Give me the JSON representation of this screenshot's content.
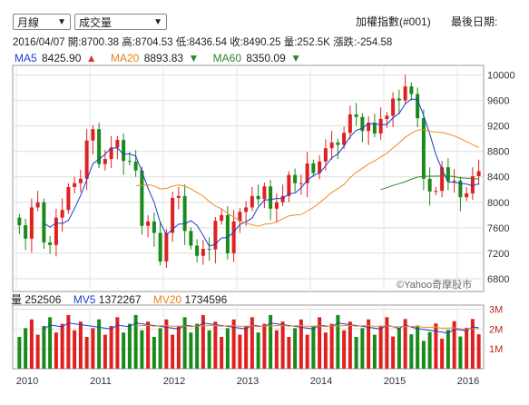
{
  "controls": {
    "period_select": "月線",
    "indicator_select": "成交量",
    "index_name": "加權指數(#001)",
    "last_date_label": "最後日期:"
  },
  "quote": {
    "date": "2016/04/07",
    "open_label": "開:",
    "open": "8700.38",
    "high_label": "高:",
    "high": "8704.53",
    "low_label": "低:",
    "low": "8436.54",
    "close_label": "收:",
    "close": "8490.25",
    "volume_label": "量:",
    "volume": "252.5K",
    "change_label": "漲跌:",
    "change": "-254.58"
  },
  "ma": [
    {
      "label": "MA5",
      "value": "8425.90",
      "dir": "▲",
      "color": "#1a3fcc",
      "dir_color": "#d32"
    },
    {
      "label": "MA20",
      "value": "8893.83",
      "dir": "▼",
      "color": "#e8811a",
      "dir_color": "#2a8a2a"
    },
    {
      "label": "MA60",
      "value": "8350.09",
      "dir": "▼",
      "color": "#2a8a2a",
      "dir_color": "#2a8a2a"
    }
  ],
  "vol_ma": {
    "vol_label": "量",
    "vol_value": "252506",
    "mv5_label": "MV5",
    "mv5_value": "1372267",
    "mv20_label": "MV20",
    "mv20_value": "1734596"
  },
  "watermark": "©Yahoo奇摩股市",
  "colors": {
    "up": "#e02020",
    "down": "#1a8a1a",
    "ma5": "#1a3fcc",
    "ma20": "#f08a24",
    "ma60": "#2a8a2a"
  },
  "chart_data": {
    "type": "candlestick",
    "x_ticks": [
      "2010",
      "2011",
      "2012",
      "2013",
      "2014",
      "2015",
      "2016"
    ],
    "price_ticks": [
      "10000",
      "9600",
      "9200",
      "8800",
      "8400",
      "8000",
      "7600",
      "7200",
      "6800"
    ],
    "price_ylim": [
      6600,
      10150
    ],
    "volume_ticks": [
      "3M",
      "2M",
      "1M"
    ],
    "volume_ylim": [
      0,
      3200000
    ],
    "start_month": "2010-01",
    "closes": [
      7640,
      7430,
      7920,
      8000,
      7370,
      7330,
      7760,
      7880,
      8240,
      8300,
      8370,
      8970,
      9150,
      8600,
      8680,
      8860,
      8980,
      8650,
      8640,
      8500,
      7630,
      7700,
      7520,
      7070,
      7520,
      8070,
      8100,
      7550,
      7320,
      7160,
      7270,
      7260,
      7710,
      7800,
      7200,
      7700,
      7850,
      7920,
      8100,
      8050,
      8250,
      7900,
      8000,
      8100,
      8430,
      8300,
      8300,
      8610,
      8460,
      8640,
      8850,
      8940,
      8900,
      9090,
      9380,
      9340,
      9120,
      9250,
      9080,
      9310,
      9360,
      9630,
      9600,
      9820,
      9700,
      9320,
      8370,
      8170,
      8180,
      8550,
      8330,
      8340,
      8080,
      8140,
      8410,
      8490
    ]
  }
}
